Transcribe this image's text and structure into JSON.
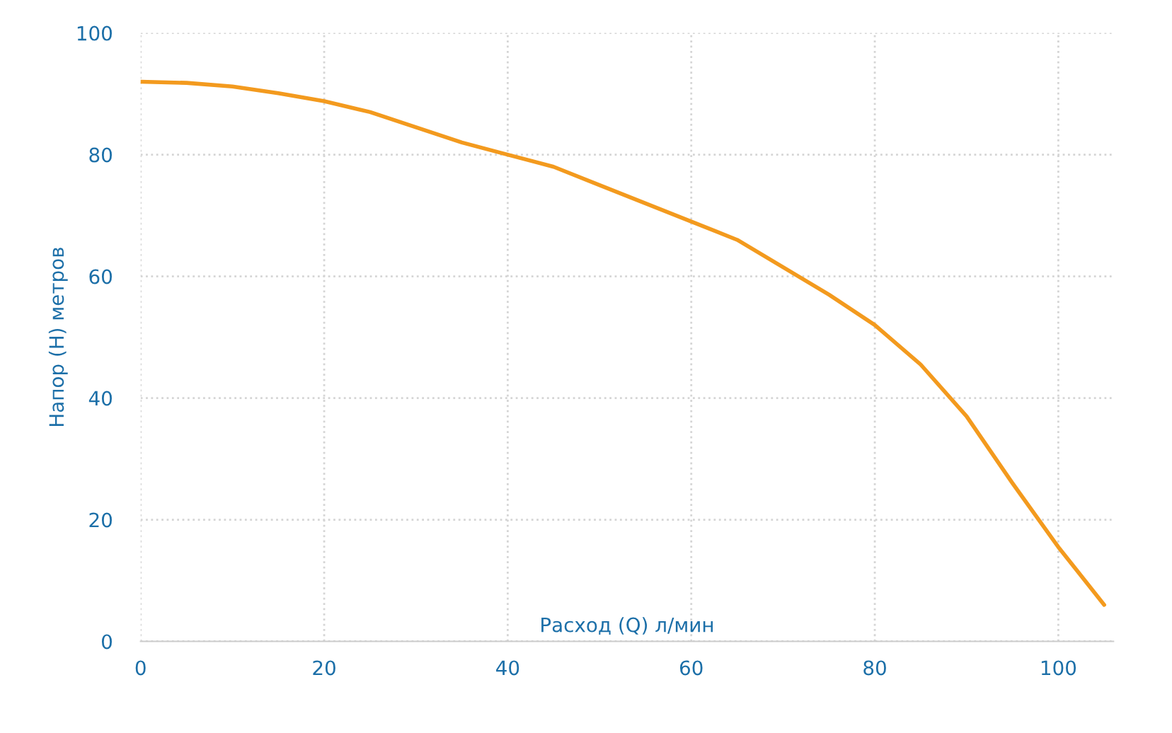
{
  "chart_data": {
    "type": "line",
    "xlabel": "Расход (Q) л/мин",
    "ylabel": "Напор (H) метров",
    "x": [
      0,
      5,
      10,
      15,
      20,
      25,
      30,
      35,
      40,
      45,
      50,
      55,
      60,
      65,
      70,
      75,
      80,
      85,
      90,
      95,
      100,
      105
    ],
    "series": [
      {
        "color": "#f39a1e",
        "values": [
          92,
          91.8,
          91.2,
          90.1,
          88.8,
          87,
          84.5,
          82,
          80,
          78,
          75,
          72,
          69,
          66,
          61.5,
          57,
          52,
          45.5,
          37,
          26,
          15.5,
          6
        ]
      }
    ],
    "xlim": [
      0,
      106
    ],
    "ylim": [
      0,
      100
    ],
    "xticks": [
      0,
      20,
      40,
      60,
      80,
      100
    ],
    "yticks": [
      0,
      20,
      40,
      60,
      80,
      100
    ],
    "grid": true,
    "marker": "none",
    "line_style": "solid",
    "legend": false
  }
}
